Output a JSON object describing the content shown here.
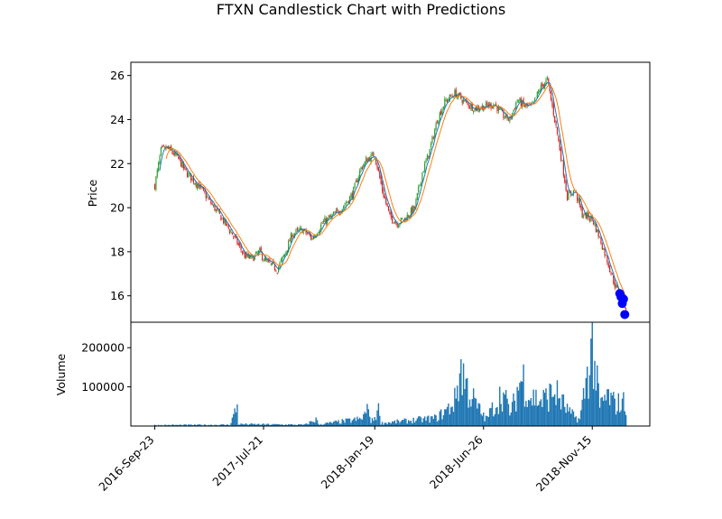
{
  "chart_data": {
    "type": "candlestick",
    "title": "FTXN Candlestick Chart with Predictions",
    "price_panel": {
      "ylabel": "Price",
      "ylim": [
        14.8,
        26.6
      ],
      "yticks": [
        16,
        18,
        20,
        22,
        24,
        26
      ],
      "grid": false,
      "legend": "none"
    },
    "volume_panel": {
      "ylabel": "Volume",
      "ylim": [
        0,
        265000
      ],
      "yticks": [
        100000,
        200000
      ]
    },
    "x_axis": {
      "tick_labels": [
        "2016-Sep-23",
        "2017-Jul-21",
        "2018-Jan-19",
        "2018-Jun-26",
        "2018-Nov-15"
      ],
      "tick_index": [
        0,
        87,
        176,
        263,
        350
      ],
      "n_bars": 378
    },
    "colors": {
      "up": "#2ca02c",
      "down": "#d62728",
      "ma_short": "#1f77b4",
      "ma_long": "#ff7f0e",
      "volume": "#1f77b4",
      "prediction": "#0000ff"
    },
    "price_anchors": [
      [
        0,
        21.0
      ],
      [
        5,
        22.6
      ],
      [
        10,
        22.7
      ],
      [
        18,
        22.3
      ],
      [
        25,
        21.6
      ],
      [
        35,
        21.0
      ],
      [
        45,
        20.2
      ],
      [
        55,
        19.4
      ],
      [
        62,
        18.8
      ],
      [
        68,
        18.2
      ],
      [
        72,
        17.8
      ],
      [
        78,
        17.7
      ],
      [
        84,
        18.0
      ],
      [
        88,
        17.6
      ],
      [
        98,
        17.2
      ],
      [
        104,
        17.9
      ],
      [
        110,
        18.8
      ],
      [
        118,
        19.0
      ],
      [
        126,
        18.6
      ],
      [
        134,
        19.3
      ],
      [
        142,
        19.6
      ],
      [
        150,
        20.0
      ],
      [
        158,
        20.6
      ],
      [
        165,
        21.8
      ],
      [
        170,
        22.2
      ],
      [
        176,
        22.4
      ],
      [
        182,
        20.8
      ],
      [
        188,
        19.6
      ],
      [
        194,
        19.3
      ],
      [
        200,
        19.5
      ],
      [
        208,
        20.0
      ],
      [
        214,
        21.6
      ],
      [
        220,
        22.6
      ],
      [
        226,
        24.0
      ],
      [
        232,
        24.8
      ],
      [
        240,
        25.2
      ],
      [
        248,
        24.8
      ],
      [
        256,
        24.5
      ],
      [
        264,
        24.6
      ],
      [
        272,
        24.7
      ],
      [
        278,
        24.2
      ],
      [
        284,
        24.0
      ],
      [
        290,
        24.9
      ],
      [
        296,
        24.6
      ],
      [
        302,
        24.6
      ],
      [
        308,
        25.4
      ],
      [
        314,
        25.8
      ],
      [
        320,
        24.0
      ],
      [
        326,
        22.0
      ],
      [
        330,
        20.5
      ],
      [
        336,
        20.8
      ],
      [
        342,
        19.7
      ],
      [
        350,
        19.5
      ],
      [
        356,
        18.6
      ],
      [
        362,
        17.6
      ],
      [
        368,
        16.5
      ],
      [
        372,
        16.0
      ],
      [
        377,
        15.5
      ]
    ],
    "predictions": [
      {
        "index": 372,
        "price": 16.1
      },
      {
        "index": 373,
        "price": 15.95
      },
      {
        "index": 374,
        "price": 15.65
      },
      {
        "index": 375,
        "price": 15.85
      },
      {
        "index": 376,
        "price": 15.15
      }
    ],
    "volume_anchors": [
      [
        0,
        3000
      ],
      [
        60,
        4000
      ],
      [
        66,
        62000
      ],
      [
        67,
        6000
      ],
      [
        120,
        4000
      ],
      [
        130,
        22000
      ],
      [
        131,
        5000
      ],
      [
        165,
        22000
      ],
      [
        172,
        58000
      ],
      [
        173,
        10000
      ],
      [
        180,
        58000
      ],
      [
        181,
        9000
      ],
      [
        225,
        25000
      ],
      [
        235,
        55000
      ],
      [
        240,
        80000
      ],
      [
        245,
        185000
      ],
      [
        250,
        120000
      ],
      [
        258,
        60000
      ],
      [
        265,
        22000
      ],
      [
        278,
        105000
      ],
      [
        285,
        40000
      ],
      [
        292,
        140000
      ],
      [
        295,
        150000
      ],
      [
        300,
        95000
      ],
      [
        310,
        80000
      ],
      [
        320,
        110000
      ],
      [
        332,
        40000
      ],
      [
        340,
        20000
      ],
      [
        350,
        255000
      ],
      [
        356,
        60000
      ],
      [
        362,
        95000
      ],
      [
        368,
        70000
      ],
      [
        377,
        75000
      ]
    ]
  }
}
